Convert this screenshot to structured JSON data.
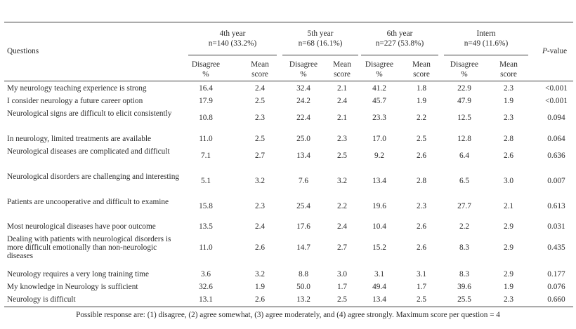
{
  "table": {
    "questions_header": "Questions",
    "pvalue_header": {
      "italic": "P",
      "rest": "-value"
    },
    "groups": [
      {
        "name": "4th year",
        "n": "n=140 (33.2%)"
      },
      {
        "name": "5th year",
        "n": "n=68 (16.1%)"
      },
      {
        "name": "6th year",
        "n": "n=227 (53.8%)"
      },
      {
        "name": "Intern",
        "n": "n=49 (11.6%)"
      }
    ],
    "sub_headers": {
      "disagree": "Disagree",
      "pct": "%",
      "mean": "Mean",
      "score": "score"
    },
    "rows": [
      {
        "question": "My neurology teaching experience is strong",
        "values": [
          "16.4",
          "2.4",
          "32.4",
          "2.1",
          "41.2",
          "1.8",
          "22.9",
          "2.3"
        ],
        "p": "<0.001"
      },
      {
        "question": "I consider neurology a future career option",
        "values": [
          "17.9",
          "2.5",
          "24.2",
          "2.4",
          "45.7",
          "1.9",
          "47.9",
          "1.9"
        ],
        "p": "<0.001"
      },
      {
        "question": "Neurological signs are difficult to elicit consistently",
        "values": [
          "10.8",
          "2.3",
          "22.4",
          "2.1",
          "23.3",
          "2.2",
          "12.5",
          "2.3"
        ],
        "p": "0.094"
      },
      {
        "question": "In neurology, limited treatments are available",
        "values": [
          "11.0",
          "2.5",
          "25.0",
          "2.3",
          "17.0",
          "2.5",
          "12.8",
          "2.8"
        ],
        "p": "0.064"
      },
      {
        "question": "Neurological diseases are complicated and difficult",
        "values": [
          "7.1",
          "2.7",
          "13.4",
          "2.5",
          "9.2",
          "2.6",
          "6.4",
          "2.6"
        ],
        "p": "0.636"
      },
      {
        "question": "Neurological disorders are challenging and interesting",
        "values": [
          "5.1",
          "3.2",
          "7.6",
          "3.2",
          "13.4",
          "2.8",
          "6.5",
          "3.0"
        ],
        "p": "0.007"
      },
      {
        "question": "Patients are uncooperative and difficult to examine",
        "values": [
          "15.8",
          "2.3",
          "25.4",
          "2.2",
          "19.6",
          "2.3",
          "27.7",
          "2.1"
        ],
        "p": "0.613"
      },
      {
        "question": "Most neurological diseases have poor outcome",
        "values": [
          "13.5",
          "2.4",
          "17.6",
          "2.4",
          "10.4",
          "2.6",
          "2.2",
          "2.9"
        ],
        "p": "0.031"
      },
      {
        "question": "Dealing with patients with neurological disorders is more difficult emotionally than non-neurologic diseases",
        "values": [
          "11.0",
          "2.6",
          "14.7",
          "2.7",
          "15.2",
          "2.6",
          "8.3",
          "2.9"
        ],
        "p": "0.435"
      },
      {
        "question": "Neurology requires a very long training time",
        "values": [
          "3.6",
          "3.2",
          "8.8",
          "3.0",
          "3.1",
          "3.1",
          "8.3",
          "2.9"
        ],
        "p": "0.177"
      },
      {
        "question": "My knowledge in Neurology is sufficient",
        "values": [
          "32.6",
          "1.9",
          "50.0",
          "1.7",
          "49.4",
          "1.7",
          "39.6",
          "1.9"
        ],
        "p": "0.076"
      },
      {
        "question": "Neurology is difficult",
        "values": [
          "13.1",
          "2.6",
          "13.2",
          "2.5",
          "13.4",
          "2.5",
          "25.5",
          "2.3"
        ],
        "p": "0.660"
      }
    ],
    "footnote": "Possible response are: (1) disagree, (2) agree somewhat, (3) agree moderately, and (4) agree strongly. Maximum score per question = 4"
  }
}
